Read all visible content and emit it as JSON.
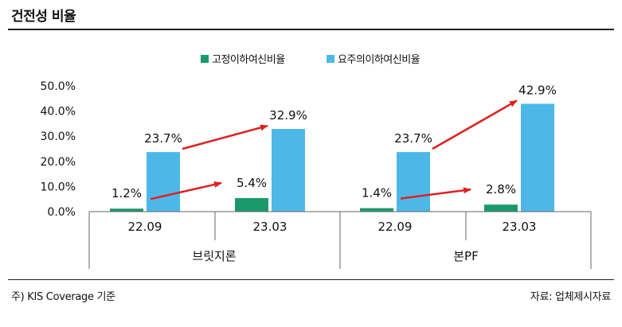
{
  "header": {
    "title": "건전성 비율"
  },
  "footer": {
    "note": "주) KIS Coverage 기준",
    "source": "자료: 업체제시자료"
  },
  "chart_data": {
    "type": "bar",
    "title": "",
    "xlabel": "",
    "ylabel": "",
    "ylim": [
      0,
      50
    ],
    "y_tick_labels": [
      "0.0%",
      "10.0%",
      "20.0%",
      "30.0%",
      "40.0%",
      "50.0%"
    ],
    "y_ticks": [
      0,
      10,
      20,
      30,
      40,
      50
    ],
    "groups": [
      "브릿지론",
      "본PF"
    ],
    "categories": [
      "22.09",
      "23.03",
      "22.09",
      "23.03"
    ],
    "series": [
      {
        "name": "고정이하여신비율",
        "color": "#1a9a6c",
        "values": [
          1.2,
          5.4,
          1.4,
          2.8
        ],
        "labels": [
          "1.2%",
          "5.4%",
          "1.4%",
          "2.8%"
        ]
      },
      {
        "name": "요주의이하여신비율",
        "color": "#4db8e8",
        "values": [
          23.7,
          32.9,
          23.7,
          42.9
        ],
        "labels": [
          "23.7%",
          "32.9%",
          "23.7%",
          "42.9%"
        ]
      }
    ],
    "legend_position": "top",
    "grid": false,
    "annotations": "red arrows indicate increase from 22.09 to 23.03 for each series",
    "arrow_color": "#e02020"
  }
}
